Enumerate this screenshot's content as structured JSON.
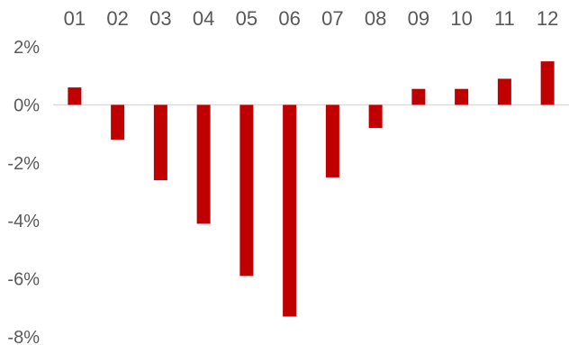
{
  "chart_data": {
    "type": "bar",
    "title": "",
    "xlabel": "",
    "ylabel": "",
    "categories": [
      "01",
      "02",
      "03",
      "04",
      "05",
      "06",
      "07",
      "08",
      "09",
      "10",
      "11",
      "12"
    ],
    "values": [
      0.6,
      -1.2,
      -2.6,
      -4.1,
      -5.9,
      -7.3,
      -2.5,
      -0.8,
      0.55,
      0.55,
      0.9,
      1.5
    ],
    "ylim": [
      -8,
      2
    ],
    "yticks": [
      2,
      0,
      -2,
      -4,
      -6,
      -8
    ],
    "ytick_labels": [
      "2%",
      "0%",
      "-2%",
      "-4%",
      "-6%",
      "-8%"
    ],
    "x_axis_position": "top",
    "grid": false,
    "bar_color": "#c00000",
    "axis_line_color": "#d9d9d9",
    "text_color": "#595959"
  }
}
